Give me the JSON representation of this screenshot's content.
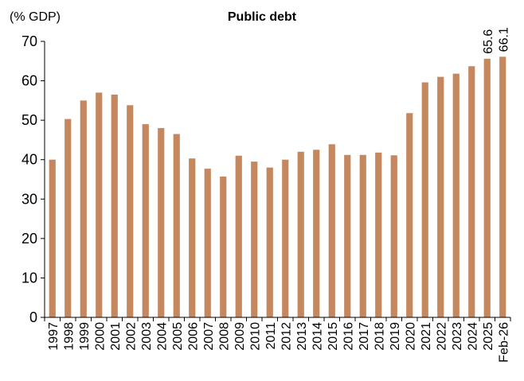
{
  "chart_data": {
    "type": "bar",
    "title": "Public debt",
    "ylabel": "(% GDP)",
    "xlabel": "",
    "ylim": [
      0,
      70
    ],
    "yticks": [
      0,
      10,
      20,
      30,
      40,
      50,
      60,
      70
    ],
    "grid": false,
    "legend": "none",
    "bar_color": "#C4875E",
    "categories": [
      "1997",
      "1998",
      "1999",
      "2000",
      "2001",
      "2002",
      "2003",
      "2004",
      "2005",
      "2006",
      "2007",
      "2008",
      "2009",
      "2010",
      "2011",
      "2012",
      "2013",
      "2014",
      "2015",
      "2016",
      "2017",
      "2018",
      "2019",
      "2020",
      "2021",
      "2022",
      "2023",
      "2024",
      "2025",
      "Feb-26"
    ],
    "values": [
      40.0,
      50.3,
      55.0,
      57.0,
      56.5,
      53.8,
      49.0,
      48.0,
      46.5,
      40.3,
      37.7,
      35.7,
      41.0,
      39.5,
      38.0,
      40.0,
      42.0,
      42.5,
      43.9,
      41.2,
      41.2,
      41.8,
      41.1,
      51.8,
      59.6,
      61.0,
      61.8,
      63.7,
      65.6,
      66.1
    ],
    "data_labels": [
      {
        "category": "2025",
        "text": "65.6"
      },
      {
        "category": "Feb-26",
        "text": "66.1"
      }
    ]
  }
}
